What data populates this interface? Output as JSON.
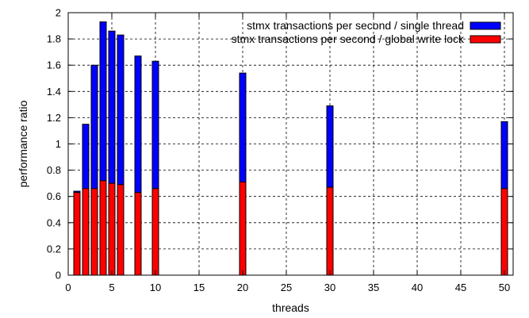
{
  "chart_data": {
    "type": "bar",
    "xlabel": "threads",
    "ylabel": "performance ratio",
    "xlim": [
      0,
      51
    ],
    "ylim": [
      0,
      2
    ],
    "xticks": [
      0,
      5,
      10,
      15,
      20,
      25,
      30,
      35,
      40,
      45,
      50
    ],
    "yticks": [
      0,
      0.2,
      0.4,
      0.6,
      0.8,
      1,
      1.2,
      1.4,
      1.6,
      1.8,
      2
    ],
    "grid": true,
    "legend_position": "top-right",
    "x": [
      1,
      2,
      3,
      4,
      5,
      6,
      8,
      10,
      20,
      30,
      50
    ],
    "series": [
      {
        "name": "stmx transactions per second / single thread",
        "color": "#0000ff",
        "values": [
          0.64,
          1.15,
          1.6,
          1.93,
          1.86,
          1.83,
          1.67,
          1.63,
          1.54,
          1.29,
          1.17
        ]
      },
      {
        "name": "stmx transactions per second / global write lock",
        "color": "#ff0000",
        "values": [
          0.63,
          0.66,
          0.66,
          0.72,
          0.7,
          0.69,
          0.63,
          0.66,
          0.71,
          0.67,
          0.66
        ]
      }
    ]
  }
}
